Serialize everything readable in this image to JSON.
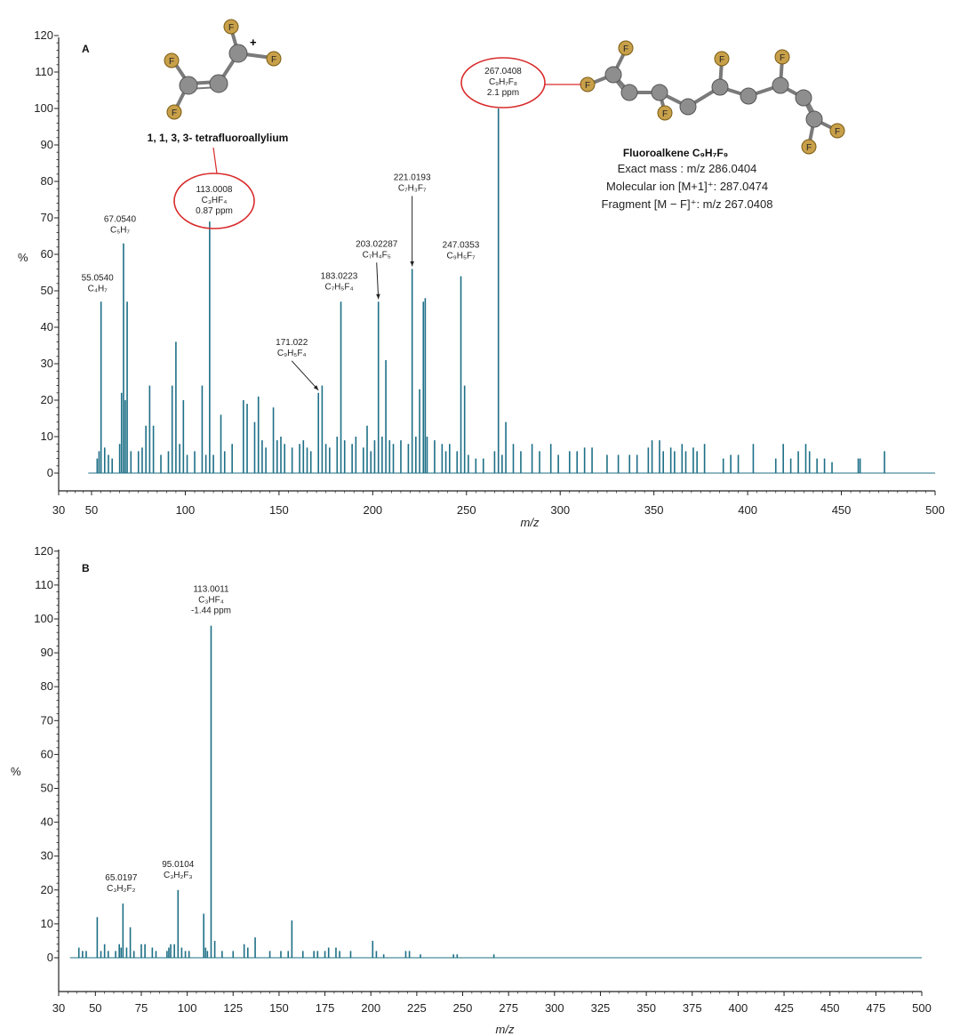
{
  "chart_data": [
    {
      "type": "bar",
      "panel": "A",
      "xlabel": "m/z",
      "ylabel": "%",
      "xlim": [
        30,
        500
      ],
      "ylim": [
        0,
        120
      ],
      "x_ticks": [
        30,
        50,
        100,
        150,
        200,
        250,
        300,
        350,
        400,
        450,
        500
      ],
      "y_ticks": [
        0,
        10,
        20,
        30,
        40,
        50,
        60,
        70,
        80,
        90,
        100,
        110,
        120
      ],
      "color": "#1d6f86",
      "peaks": [
        {
          "x": 53,
          "y": 4
        },
        {
          "x": 54,
          "y": 6
        },
        {
          "x": 55.054,
          "y": 47
        },
        {
          "x": 57,
          "y": 7
        },
        {
          "x": 59,
          "y": 5
        },
        {
          "x": 61,
          "y": 4
        },
        {
          "x": 65,
          "y": 8
        },
        {
          "x": 66,
          "y": 22
        },
        {
          "x": 67.054,
          "y": 63
        },
        {
          "x": 68,
          "y": 20
        },
        {
          "x": 69,
          "y": 47
        },
        {
          "x": 71,
          "y": 6
        },
        {
          "x": 75,
          "y": 6
        },
        {
          "x": 77,
          "y": 7
        },
        {
          "x": 79,
          "y": 13
        },
        {
          "x": 81,
          "y": 24
        },
        {
          "x": 83,
          "y": 13
        },
        {
          "x": 87,
          "y": 5
        },
        {
          "x": 91,
          "y": 6
        },
        {
          "x": 93,
          "y": 24
        },
        {
          "x": 95,
          "y": 36
        },
        {
          "x": 97,
          "y": 8
        },
        {
          "x": 99,
          "y": 20
        },
        {
          "x": 101,
          "y": 5
        },
        {
          "x": 105,
          "y": 6
        },
        {
          "x": 109,
          "y": 24
        },
        {
          "x": 111,
          "y": 5
        },
        {
          "x": 113.0008,
          "y": 69
        },
        {
          "x": 115,
          "y": 5
        },
        {
          "x": 119,
          "y": 16
        },
        {
          "x": 121,
          "y": 6
        },
        {
          "x": 125,
          "y": 8
        },
        {
          "x": 131,
          "y": 20
        },
        {
          "x": 133,
          "y": 19
        },
        {
          "x": 137,
          "y": 14
        },
        {
          "x": 139,
          "y": 21
        },
        {
          "x": 141,
          "y": 9
        },
        {
          "x": 143,
          "y": 7
        },
        {
          "x": 147,
          "y": 18
        },
        {
          "x": 149,
          "y": 9
        },
        {
          "x": 151,
          "y": 10
        },
        {
          "x": 153,
          "y": 8
        },
        {
          "x": 157,
          "y": 7
        },
        {
          "x": 161,
          "y": 8
        },
        {
          "x": 163,
          "y": 9
        },
        {
          "x": 165,
          "y": 7
        },
        {
          "x": 167,
          "y": 6
        },
        {
          "x": 171.022,
          "y": 22
        },
        {
          "x": 173,
          "y": 24
        },
        {
          "x": 175,
          "y": 8
        },
        {
          "x": 177,
          "y": 7
        },
        {
          "x": 181,
          "y": 10
        },
        {
          "x": 183.0223,
          "y": 47
        },
        {
          "x": 185,
          "y": 9
        },
        {
          "x": 189,
          "y": 8
        },
        {
          "x": 191,
          "y": 10
        },
        {
          "x": 195,
          "y": 7
        },
        {
          "x": 197,
          "y": 13
        },
        {
          "x": 199,
          "y": 6
        },
        {
          "x": 201,
          "y": 9
        },
        {
          "x": 203.0229,
          "y": 47
        },
        {
          "x": 205,
          "y": 10
        },
        {
          "x": 207,
          "y": 31
        },
        {
          "x": 209,
          "y": 9
        },
        {
          "x": 211,
          "y": 8
        },
        {
          "x": 215,
          "y": 9
        },
        {
          "x": 219,
          "y": 8
        },
        {
          "x": 221.0193,
          "y": 56
        },
        {
          "x": 223,
          "y": 10
        },
        {
          "x": 225,
          "y": 23
        },
        {
          "x": 227,
          "y": 47
        },
        {
          "x": 228,
          "y": 48
        },
        {
          "x": 229,
          "y": 10
        },
        {
          "x": 233,
          "y": 9
        },
        {
          "x": 237,
          "y": 8
        },
        {
          "x": 239,
          "y": 6
        },
        {
          "x": 241,
          "y": 8
        },
        {
          "x": 245,
          "y": 6
        },
        {
          "x": 247.0353,
          "y": 54
        },
        {
          "x": 249,
          "y": 24
        },
        {
          "x": 251,
          "y": 5
        },
        {
          "x": 255,
          "y": 4
        },
        {
          "x": 259,
          "y": 4
        },
        {
          "x": 265,
          "y": 6
        },
        {
          "x": 267.0408,
          "y": 100
        },
        {
          "x": 269,
          "y": 5
        },
        {
          "x": 271,
          "y": 14
        },
        {
          "x": 275,
          "y": 8
        },
        {
          "x": 279,
          "y": 6
        },
        {
          "x": 285,
          "y": 8
        },
        {
          "x": 289,
          "y": 6
        },
        {
          "x": 295,
          "y": 8
        },
        {
          "x": 299,
          "y": 5
        },
        {
          "x": 305,
          "y": 6
        },
        {
          "x": 309,
          "y": 6
        },
        {
          "x": 313,
          "y": 7
        },
        {
          "x": 317,
          "y": 7
        },
        {
          "x": 325,
          "y": 5
        },
        {
          "x": 331,
          "y": 5
        },
        {
          "x": 337,
          "y": 5
        },
        {
          "x": 341,
          "y": 5
        },
        {
          "x": 347,
          "y": 7
        },
        {
          "x": 349,
          "y": 9
        },
        {
          "x": 353,
          "y": 9
        },
        {
          "x": 355,
          "y": 6
        },
        {
          "x": 359,
          "y": 7
        },
        {
          "x": 361,
          "y": 6
        },
        {
          "x": 365,
          "y": 8
        },
        {
          "x": 367,
          "y": 6
        },
        {
          "x": 371,
          "y": 7
        },
        {
          "x": 373,
          "y": 6
        },
        {
          "x": 377,
          "y": 8
        },
        {
          "x": 387,
          "y": 4
        },
        {
          "x": 391,
          "y": 5
        },
        {
          "x": 395,
          "y": 5
        },
        {
          "x": 403,
          "y": 8
        },
        {
          "x": 415,
          "y": 4
        },
        {
          "x": 419,
          "y": 8
        },
        {
          "x": 423,
          "y": 4
        },
        {
          "x": 427,
          "y": 6
        },
        {
          "x": 431,
          "y": 8
        },
        {
          "x": 433,
          "y": 6
        },
        {
          "x": 437,
          "y": 4
        },
        {
          "x": 441,
          "y": 4
        },
        {
          "x": 445,
          "y": 3
        },
        {
          "x": 459,
          "y": 4
        },
        {
          "x": 460,
          "y": 4
        },
        {
          "x": 473,
          "y": 6
        }
      ],
      "annotations": [
        {
          "x": 55.054,
          "y": 47,
          "lines": [
            "55.0540",
            "C₄H₇"
          ]
        },
        {
          "x": 67.054,
          "y": 63,
          "lines": [
            "67.0540",
            "C₅H₇"
          ]
        },
        {
          "x": 113.0008,
          "y": 69,
          "lines": [
            "113.0008",
            "C₃HF₄",
            "0.87 ppm"
          ],
          "circled": true
        },
        {
          "x": 171.022,
          "y": 22,
          "lines": [
            "171.022",
            "C₉H₅F₄"
          ],
          "arrow": true
        },
        {
          "x": 183.0223,
          "y": 47,
          "lines": [
            "183.0223",
            "C₇H₅F₄"
          ]
        },
        {
          "x": 203.0229,
          "y": 47,
          "lines": [
            "203.02287",
            "C₇H₄F₅"
          ],
          "arrow": true
        },
        {
          "x": 221.0193,
          "y": 56,
          "lines": [
            "221.0193",
            "C₇H₃F₇"
          ],
          "arrow": true
        },
        {
          "x": 247.0353,
          "y": 54,
          "lines": [
            "247.0353",
            "C₉H₅F₇"
          ]
        },
        {
          "x": 267.0408,
          "y": 100,
          "lines": [
            "267.0408",
            "C₉H₇F₈",
            "2.1 ppm"
          ],
          "circled": true
        }
      ],
      "molecule_left": {
        "name": "1, 1, 3, 3- tetrafluoroallylium",
        "atom_label": "F",
        "charge": "+"
      },
      "molecule_right": {
        "name": "Fluoroalkene C₉H₇F₉",
        "info": [
          "Exact mass : m/z 286.0404",
          "Molecular ion [M+1]⁺: 287.0474",
          "Fragment [M − F]⁺: m/z 267.0408"
        ],
        "atom_label": "F"
      }
    },
    {
      "type": "bar",
      "panel": "B",
      "xlabel": "m/z",
      "ylabel": "%",
      "xlim": [
        30,
        500
      ],
      "ylim": [
        -10,
        120
      ],
      "x_ticks": [
        30,
        50,
        75,
        100,
        125,
        150,
        175,
        200,
        225,
        250,
        275,
        300,
        325,
        350,
        375,
        400,
        425,
        450,
        475,
        500
      ],
      "y_ticks": [
        0,
        10,
        20,
        30,
        40,
        50,
        60,
        70,
        80,
        90,
        100,
        110,
        120
      ],
      "color": "#1d6f86",
      "peaks": [
        {
          "x": 41,
          "y": 3
        },
        {
          "x": 43,
          "y": 2
        },
        {
          "x": 45,
          "y": 2
        },
        {
          "x": 51,
          "y": 12
        },
        {
          "x": 53,
          "y": 2
        },
        {
          "x": 55,
          "y": 4
        },
        {
          "x": 57,
          "y": 2
        },
        {
          "x": 61,
          "y": 2
        },
        {
          "x": 63,
          "y": 4
        },
        {
          "x": 64,
          "y": 3
        },
        {
          "x": 65.0197,
          "y": 16
        },
        {
          "x": 67,
          "y": 3
        },
        {
          "x": 69,
          "y": 9
        },
        {
          "x": 71,
          "y": 2
        },
        {
          "x": 75,
          "y": 4
        },
        {
          "x": 77,
          "y": 4
        },
        {
          "x": 81,
          "y": 3
        },
        {
          "x": 83,
          "y": 2
        },
        {
          "x": 89,
          "y": 2
        },
        {
          "x": 90,
          "y": 3
        },
        {
          "x": 91,
          "y": 4
        },
        {
          "x": 93,
          "y": 4
        },
        {
          "x": 95.0104,
          "y": 20
        },
        {
          "x": 97,
          "y": 3
        },
        {
          "x": 99,
          "y": 2
        },
        {
          "x": 101,
          "y": 2
        },
        {
          "x": 109,
          "y": 13
        },
        {
          "x": 110,
          "y": 3
        },
        {
          "x": 111,
          "y": 2
        },
        {
          "x": 113.0011,
          "y": 98
        },
        {
          "x": 115,
          "y": 5
        },
        {
          "x": 119,
          "y": 2
        },
        {
          "x": 125,
          "y": 2
        },
        {
          "x": 131,
          "y": 4
        },
        {
          "x": 133,
          "y": 3
        },
        {
          "x": 137,
          "y": 6
        },
        {
          "x": 145,
          "y": 2
        },
        {
          "x": 151,
          "y": 2
        },
        {
          "x": 155,
          "y": 2
        },
        {
          "x": 157,
          "y": 11
        },
        {
          "x": 163,
          "y": 2
        },
        {
          "x": 169,
          "y": 2
        },
        {
          "x": 171,
          "y": 2
        },
        {
          "x": 175,
          "y": 2
        },
        {
          "x": 177,
          "y": 3
        },
        {
          "x": 181,
          "y": 3
        },
        {
          "x": 183,
          "y": 2
        },
        {
          "x": 189,
          "y": 2
        },
        {
          "x": 201,
          "y": 5
        },
        {
          "x": 203,
          "y": 2
        },
        {
          "x": 207,
          "y": 1
        },
        {
          "x": 219,
          "y": 2
        },
        {
          "x": 221,
          "y": 2
        },
        {
          "x": 227,
          "y": 1
        },
        {
          "x": 245,
          "y": 1
        },
        {
          "x": 247,
          "y": 1
        },
        {
          "x": 267,
          "y": 1
        }
      ],
      "annotations": [
        {
          "x": 65.0197,
          "y": 16,
          "lines": [
            "65.0197",
            "C₃H₂F₂"
          ]
        },
        {
          "x": 95.0104,
          "y": 20,
          "lines": [
            "95.0104",
            "C₃H₂F₃"
          ]
        },
        {
          "x": 113.0011,
          "y": 98,
          "lines": [
            "113.0011",
            "C₃HF₄",
            "-1.44 ppm"
          ]
        }
      ]
    }
  ]
}
